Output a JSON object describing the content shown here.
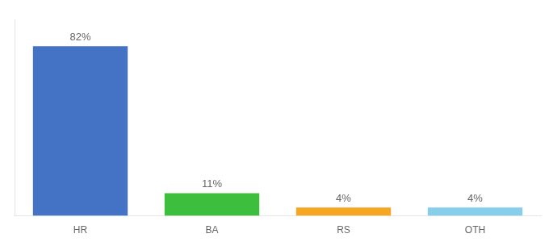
{
  "chart_data": {
    "type": "bar",
    "categories": [
      "HR",
      "BA",
      "RS",
      "OTH"
    ],
    "values": [
      82,
      11,
      4,
      4
    ],
    "value_labels": [
      "82%",
      "11%",
      "4%",
      "4%"
    ],
    "colors": [
      "#4472c4",
      "#3dbf3d",
      "#f5a623",
      "#87ceeb"
    ],
    "ylim": [
      0,
      95
    ],
    "grid": false,
    "data_labels": true,
    "tick_labels": "x"
  }
}
